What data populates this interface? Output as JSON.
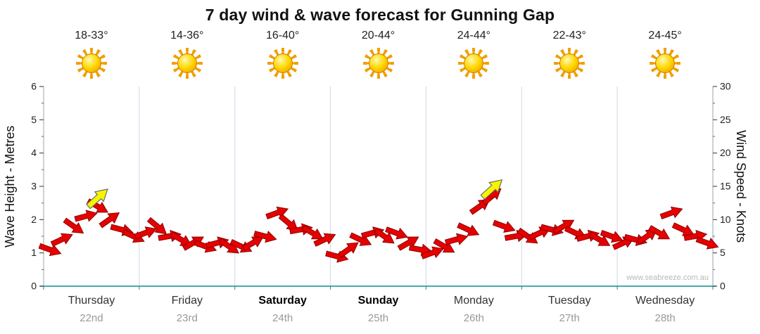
{
  "title": "7 day wind & wave forecast for Gunning Gap",
  "watermark": "www.seabreeze.com.au",
  "axes": {
    "left": {
      "label": "Wave Height - Metres",
      "ticks": [
        0,
        1,
        2,
        3,
        4,
        5,
        6
      ],
      "range": [
        0,
        6
      ]
    },
    "right": {
      "label": "Wind Speed - Knots",
      "ticks": [
        0,
        5,
        10,
        15,
        20,
        25,
        30
      ],
      "range": [
        0,
        30
      ]
    }
  },
  "days": [
    {
      "name": "Thursday",
      "date": "22nd",
      "temp": "18-33°",
      "icon": "sun-icon",
      "weekend": false
    },
    {
      "name": "Friday",
      "date": "23rd",
      "temp": "14-36°",
      "icon": "sun-icon",
      "weekend": false
    },
    {
      "name": "Saturday",
      "date": "24th",
      "temp": "16-40°",
      "icon": "sun-icon",
      "weekend": true
    },
    {
      "name": "Sunday",
      "date": "25th",
      "temp": "20-44°",
      "icon": "sun-icon",
      "weekend": true
    },
    {
      "name": "Monday",
      "date": "26th",
      "temp": "24-44°",
      "icon": "sun-icon",
      "weekend": false
    },
    {
      "name": "Tuesday",
      "date": "27th",
      "temp": "22-43°",
      "icon": "sun-icon",
      "weekend": false
    },
    {
      "name": "Wednesday",
      "date": "28th",
      "temp": "24-45°",
      "icon": "sun-icon",
      "weekend": false
    }
  ],
  "chart_data": {
    "type": "scatter",
    "subtype": "wind-arrow-series",
    "x_unit": "8 samples per day across 7 days",
    "points_per_day": 8,
    "ylim_knots": [
      0,
      30
    ],
    "ylim_metres": [
      0,
      6
    ],
    "grid": "vertical lines at day boundaries",
    "legend_position": "none",
    "arrow_color": "#e60000",
    "arrow_outline": "#8a0000",
    "gust_color": "#f5f500",
    "gust_outline": "#666666",
    "wind_knots": [
      5.5,
      7,
      9,
      10.5,
      12,
      10,
      8.5,
      7.5,
      8,
      9,
      7.5,
      7,
      6.5,
      6,
      6.5,
      6,
      6,
      6.5,
      7.5,
      11,
      9.5,
      8.5,
      8,
      7,
      4.5,
      5.5,
      7,
      8,
      7.5,
      8,
      6.5,
      5.5,
      5,
      6,
      7,
      8.5,
      12,
      13.5,
      9,
      7.5,
      7.5,
      8,
      8.5,
      9,
      8,
      7.5,
      7,
      7.5,
      6.5,
      7,
      7.5,
      8,
      11,
      8.5,
      7.5,
      6.5
    ],
    "directions_deg": [
      20,
      -25,
      35,
      -15,
      30,
      -35,
      15,
      25,
      -20,
      40,
      -10,
      30,
      -30,
      20,
      -15,
      35,
      25,
      -30,
      15,
      -20,
      40,
      -10,
      30,
      -25,
      15,
      -35,
      25,
      -15,
      35,
      20,
      -30,
      10,
      -20,
      30,
      -15,
      25,
      -35,
      -40,
      20,
      -10,
      35,
      -25,
      15,
      -30,
      25,
      -15,
      30,
      20,
      -25,
      15,
      -35,
      30,
      -20,
      25,
      -10,
      20
    ],
    "gust_markers": [
      {
        "index": 4,
        "knots": 13.2,
        "direction_deg": -42
      },
      {
        "index": 37,
        "knots": 14.6,
        "direction_deg": -42
      }
    ]
  }
}
